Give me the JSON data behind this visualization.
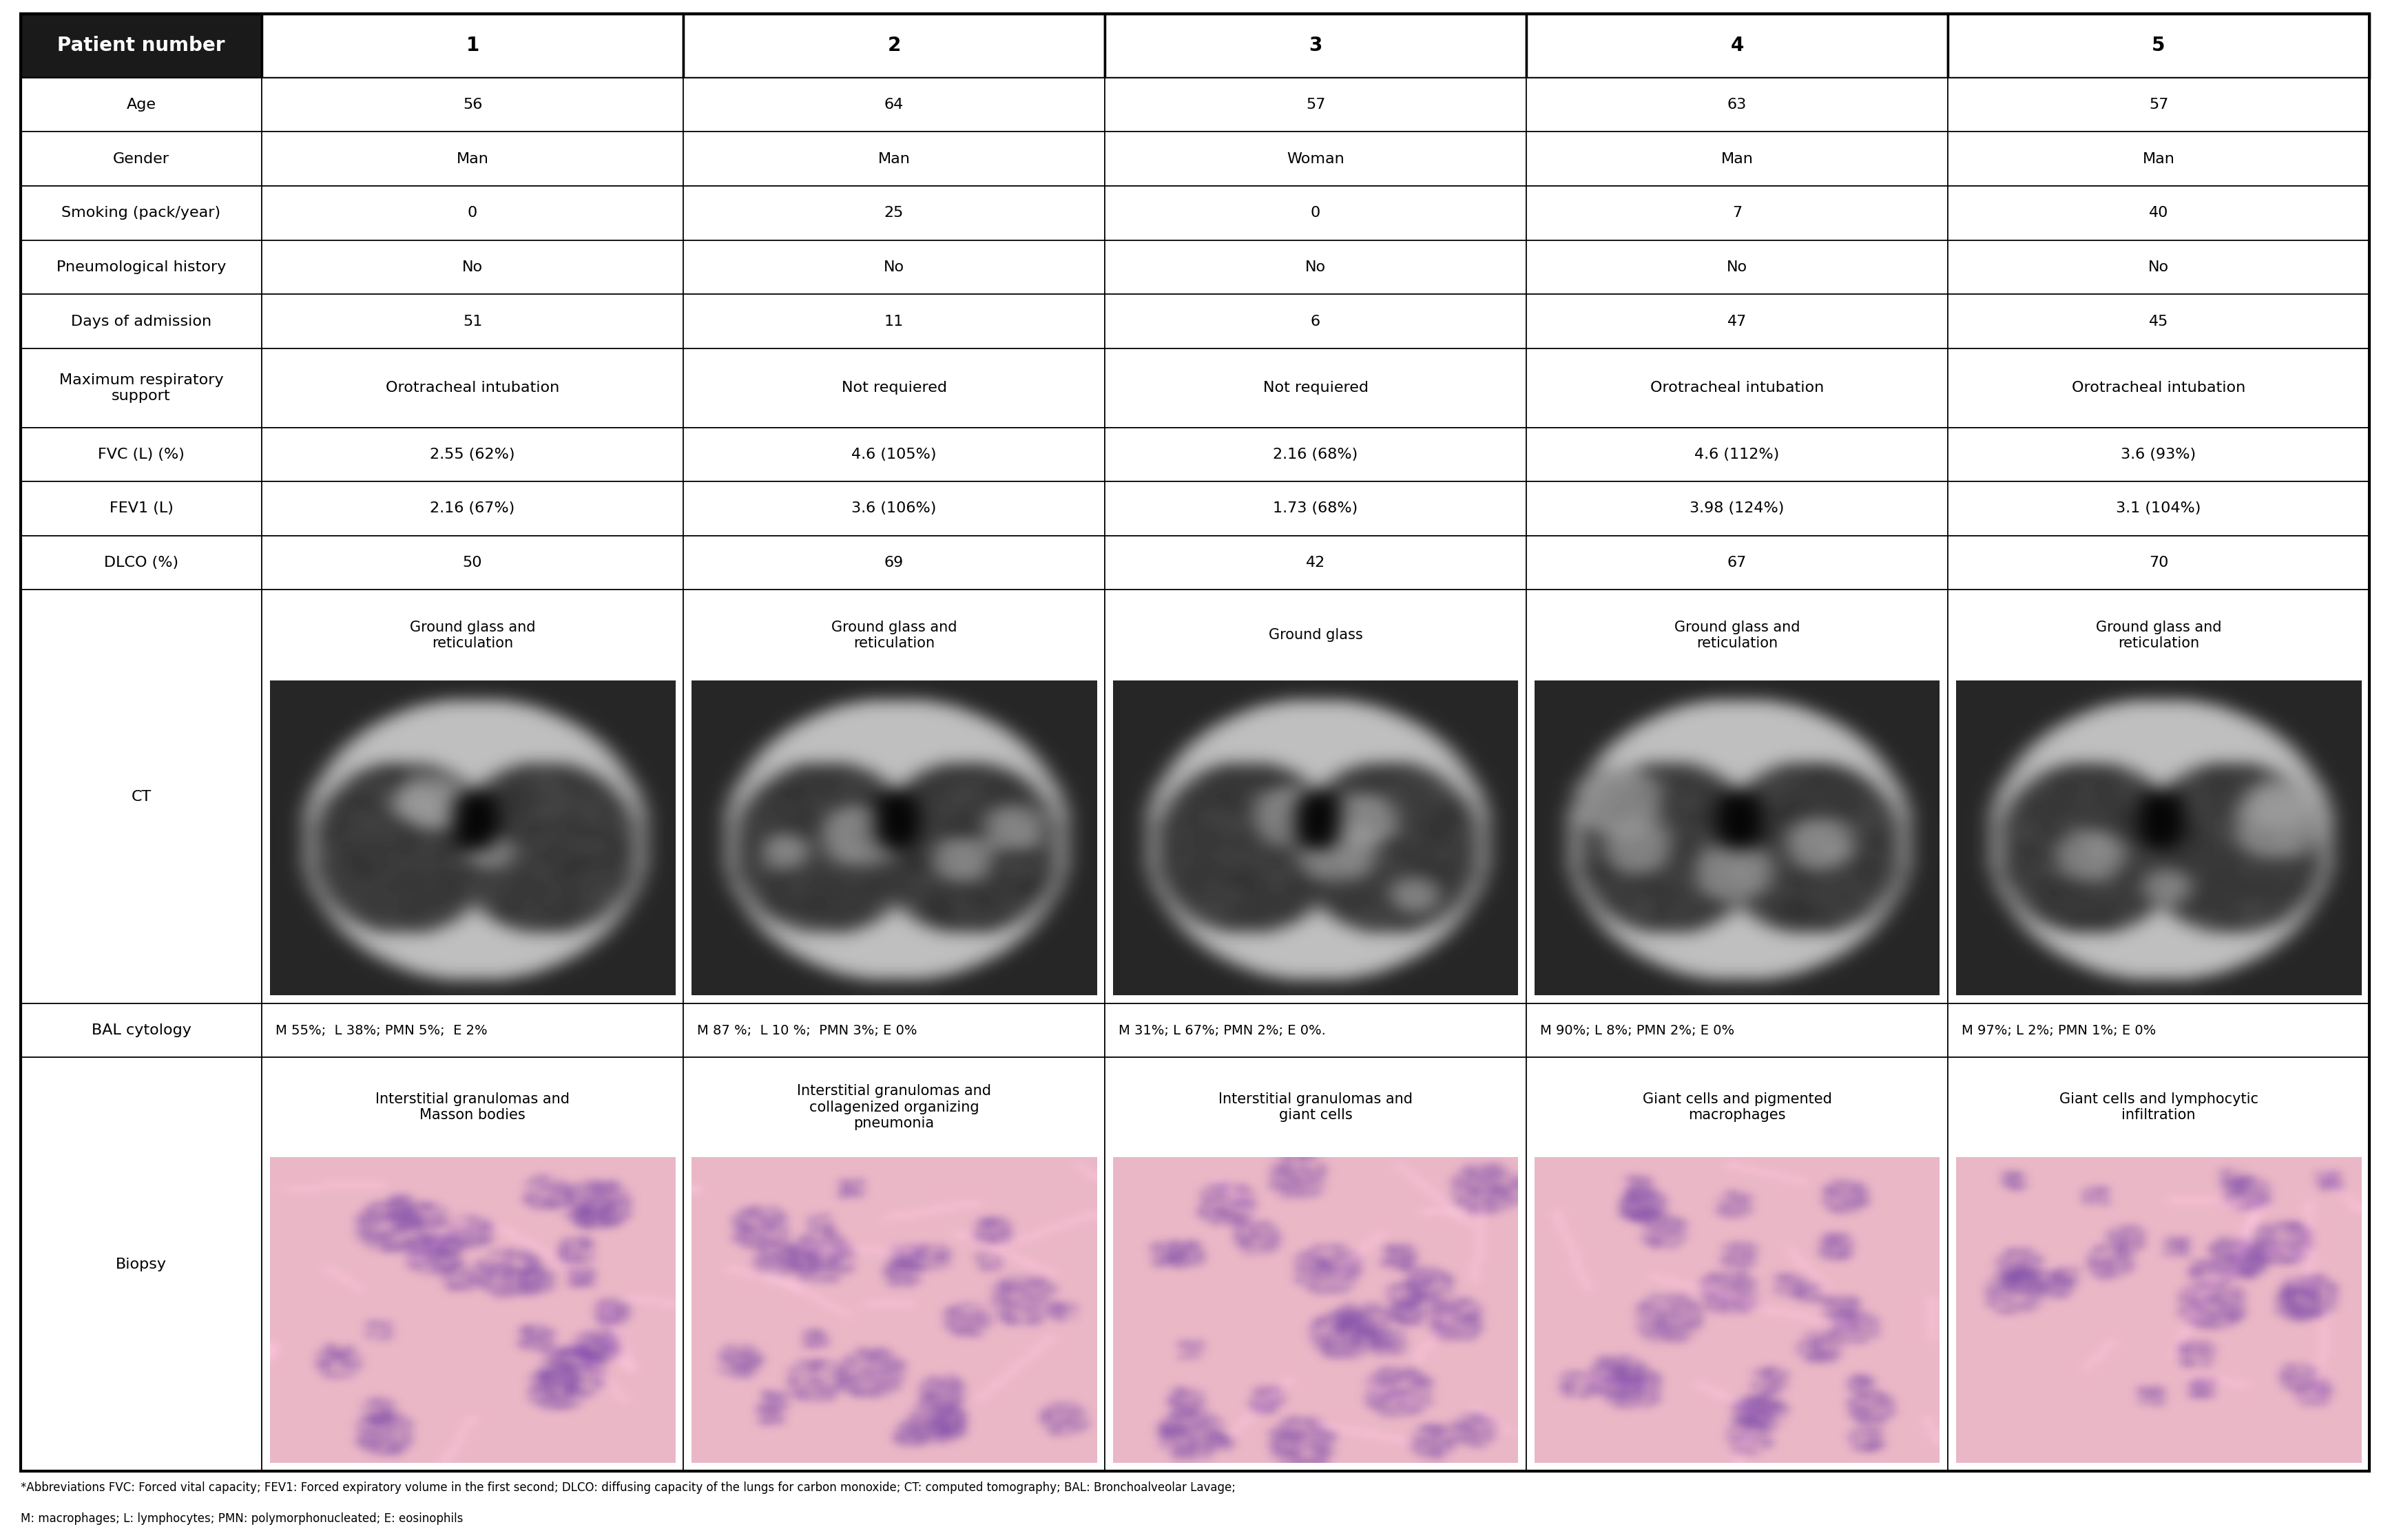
{
  "header_row": [
    "Patient number",
    "1",
    "2",
    "3",
    "4",
    "5"
  ],
  "rows": [
    [
      "Age",
      "56",
      "64",
      "57",
      "63",
      "57"
    ],
    [
      "Gender",
      "Man",
      "Man",
      "Woman",
      "Man",
      "Man"
    ],
    [
      "Smoking (pack/year)",
      "0",
      "25",
      "0",
      "7",
      "40"
    ],
    [
      "Pneumological history",
      "No",
      "No",
      "No",
      "No",
      "No"
    ],
    [
      "Days of admission",
      "51",
      "11",
      "6",
      "47",
      "45"
    ],
    [
      "Maximum respiratory\nsupport",
      "Orotracheal intubation",
      "Not requiered",
      "Not requiered",
      "Orotracheal intubation",
      "Orotracheal intubation"
    ],
    [
      "FVC (L) (%)",
      "2.55 (62%)",
      "4.6 (105%)",
      "2.16 (68%)",
      "4.6 (112%)",
      "3.6 (93%)"
    ],
    [
      "FEV1 (L)",
      "2.16 (67%)",
      "3.6 (106%)",
      "1.73 (68%)",
      "3.98 (124%)",
      "3.1 (104%)"
    ],
    [
      "DLCO (%)",
      "50",
      "69",
      "42",
      "67",
      "70"
    ]
  ],
  "ct_row_label": "CT",
  "ct_descriptions": [
    "Ground glass and\nreticulation",
    "Ground glass and\nreticulation",
    "Ground glass",
    "Ground glass and\nreticulation",
    "Ground glass and\nreticulation"
  ],
  "bal_row_label": "BAL cytology",
  "bal_values": [
    "M 55%;  L 38%; PMN 5%;  E 2%",
    "M 87 %;  L 10 %;  PMN 3%; E 0%",
    "M 31%; L 67%; PMN 2%; E 0%.",
    "M 90%; L 8%; PMN 2%; E 0%",
    "M 97%; L 2%; PMN 1%; E 0%"
  ],
  "biopsy_row_label": "Biopsy",
  "biopsy_descriptions": [
    "Interstitial granulomas and\nMasson bodies",
    "Interstitial granulomas and\ncollagenized organizing\npneumonia",
    "Interstitial granulomas and\ngiant cells",
    "Giant cells and pigmented\nmacrophages",
    "Giant cells and lymphocytic\ninfiltration"
  ],
  "footnote_line1": "*Abbreviations FVC: Forced vital capacity; FEV1: Forced expiratory volume in the first second; DLCO: diffusing capacity of the lungs for carbon monoxide; CT: computed tomography; BAL: Bronchoalveolar Lavage;",
  "footnote_line2": "M: macrophages; L: lymphocytes; PMN: polymorphonucleated; E: eosinophils",
  "header_bg": "#1a1a1a",
  "header_fg": "#ffffff",
  "border_color": "#000000",
  "text_color": "#000000",
  "font_size_header": 20,
  "font_size_label": 16,
  "font_size_data": 16,
  "font_size_bal": 14,
  "font_size_footnote": 12,
  "font_size_ct_desc": 15
}
